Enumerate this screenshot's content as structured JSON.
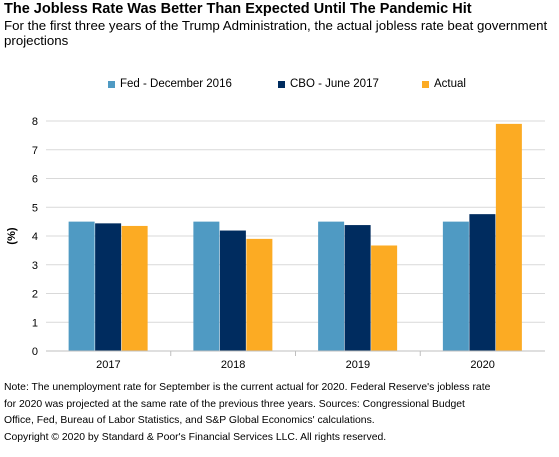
{
  "header": {
    "title": "The Jobless Rate Was Better Than Expected Until The Pandemic Hit",
    "subtitle": "For the first three years of the Trump Administration, the actual jobless rate beat government projections"
  },
  "chart_data": {
    "type": "bar",
    "categories": [
      "2017",
      "2018",
      "2019",
      "2020"
    ],
    "series": [
      {
        "name": "Fed - December 2016",
        "color": "#4f9ac3",
        "values": [
          4.5,
          4.5,
          4.5,
          4.5
        ]
      },
      {
        "name": "CBO - June 2017",
        "color": "#002c5f",
        "values": [
          4.44,
          4.19,
          4.38,
          4.76
        ]
      },
      {
        "name": "Actual",
        "color": "#fcab23",
        "values": [
          4.35,
          3.9,
          3.67,
          7.9
        ]
      }
    ],
    "ylabel": "(%)",
    "ylim": [
      0,
      8
    ],
    "yticks": [
      "0",
      "1",
      "2",
      "3",
      "4",
      "5",
      "6",
      "7",
      "8"
    ],
    "grid": true,
    "legend_position": "top"
  },
  "footnote": {
    "lines": [
      "Note: The unemployment rate for September is the current actual for 2020. Federal Reserve's jobless rate",
      "for 2020 was projected at the same rate of the previous three years. Sources: Congressional Budget",
      "Office, Fed, Bureau of Labor Statistics, and S&P Global Economics' calculations.",
      "Copyright © 2020 by Standard & Poor's Financial Services LLC. All rights reserved."
    ]
  }
}
